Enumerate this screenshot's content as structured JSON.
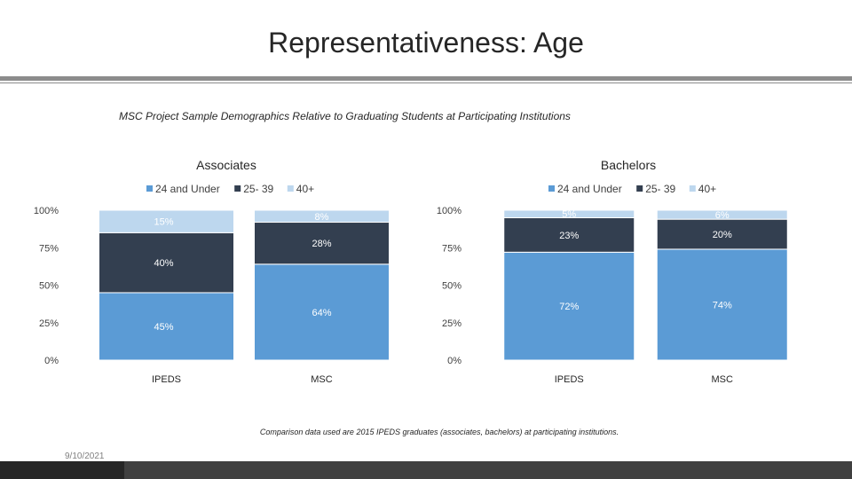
{
  "slide": {
    "title": "Representativeness: Age",
    "subtitle": "MSC Project Sample Demographics Relative to Graduating Students at Participating Institutions",
    "footnote": "Comparison data used are 2015 IPEDS graduates (associates, bachelors) at participating institutions.",
    "date": "9/10/2021"
  },
  "colors": {
    "24 and Under": "#5b9bd5",
    "25-39": "#333f50",
    "40+": "#bdd7ee"
  },
  "chart_data": [
    {
      "type": "bar",
      "stacked": true,
      "title": "Associates",
      "categories": [
        "IPEDS",
        "MSC"
      ],
      "series": [
        {
          "name": "24 and Under",
          "values": [
            45,
            64
          ],
          "labels": [
            "45%",
            "64%"
          ]
        },
        {
          "name": "25- 39",
          "values": [
            40,
            28
          ],
          "labels": [
            "40%",
            "28%"
          ]
        },
        {
          "name": "40+",
          "values": [
            15,
            8
          ],
          "labels": [
            "15%",
            "8%"
          ]
        }
      ],
      "yticks": [
        "0%",
        "25%",
        "50%",
        "75%",
        "100%"
      ],
      "ylim": [
        0,
        100
      ],
      "legend": "top"
    },
    {
      "type": "bar",
      "stacked": true,
      "title": "Bachelors",
      "categories": [
        "IPEDS",
        "MSC"
      ],
      "series": [
        {
          "name": "24 and Under",
          "values": [
            72,
            74
          ],
          "labels": [
            "72%",
            "74%"
          ]
        },
        {
          "name": "25- 39",
          "values": [
            23,
            20
          ],
          "labels": [
            "23%",
            "20%"
          ]
        },
        {
          "name": "40+",
          "values": [
            5,
            6
          ],
          "labels": [
            "5%",
            "6%"
          ]
        }
      ],
      "yticks": [
        "0%",
        "25%",
        "50%",
        "75%",
        "100%"
      ],
      "ylim": [
        0,
        100
      ],
      "legend": "top"
    }
  ]
}
